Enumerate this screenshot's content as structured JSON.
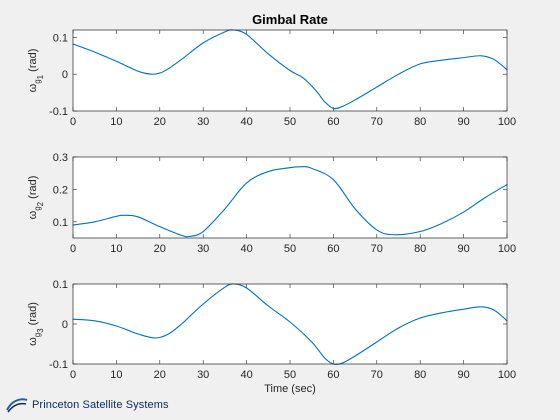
{
  "chart_data": [
    {
      "type": "line",
      "title": "Gimbal Rate",
      "ylabel": {
        "main": "ω",
        "sub": "g",
        "subsub": "1",
        "unit": "(rad)"
      },
      "xlabel": "",
      "xlim": [
        0,
        100
      ],
      "ylim": [
        -0.1,
        0.12
      ],
      "xticks": [
        0,
        10,
        20,
        30,
        40,
        50,
        60,
        70,
        80,
        90,
        100
      ],
      "yticks": [
        -0.1,
        0,
        0.1
      ],
      "ytick_labels": [
        "-0.1",
        "0",
        "0.1"
      ],
      "grid": false,
      "color": "#0072BD",
      "series": [
        {
          "x": [
            0,
            5,
            10,
            15,
            18,
            20,
            22,
            25,
            30,
            35,
            37,
            40,
            45,
            50,
            53,
            56,
            58,
            60,
            62,
            65,
            70,
            75,
            80,
            85,
            90,
            94,
            97,
            100
          ],
          "values": [
            0.082,
            0.06,
            0.035,
            0.008,
            0.0,
            0.003,
            0.015,
            0.04,
            0.085,
            0.115,
            0.12,
            0.108,
            0.055,
            0.01,
            -0.01,
            -0.045,
            -0.075,
            -0.093,
            -0.088,
            -0.07,
            -0.035,
            0.0,
            0.028,
            0.038,
            0.045,
            0.05,
            0.04,
            0.012
          ]
        }
      ]
    },
    {
      "type": "line",
      "title": "",
      "ylabel": {
        "main": "ω",
        "sub": "g",
        "subsub": "2",
        "unit": "(rad)"
      },
      "xlabel": "",
      "xlim": [
        0,
        100
      ],
      "ylim": [
        0.05,
        0.3
      ],
      "xticks": [
        0,
        10,
        20,
        30,
        40,
        50,
        60,
        70,
        80,
        90,
        100
      ],
      "yticks": [
        0.1,
        0.2,
        0.3
      ],
      "ytick_labels": [
        "0.1",
        "0.2",
        "0.3"
      ],
      "grid": false,
      "color": "#0072BD",
      "series": [
        {
          "x": [
            0,
            5,
            10,
            12,
            15,
            20,
            25,
            27,
            30,
            35,
            40,
            45,
            50,
            53,
            55,
            60,
            65,
            70,
            74,
            80,
            85,
            90,
            95,
            100
          ],
          "values": [
            0.09,
            0.1,
            0.117,
            0.12,
            0.115,
            0.085,
            0.058,
            0.055,
            0.07,
            0.14,
            0.22,
            0.255,
            0.267,
            0.27,
            0.265,
            0.23,
            0.14,
            0.075,
            0.06,
            0.07,
            0.095,
            0.13,
            0.175,
            0.215
          ]
        }
      ]
    },
    {
      "type": "line",
      "title": "",
      "ylabel": {
        "main": "ω",
        "sub": "g",
        "subsub": "3",
        "unit": "(rad)"
      },
      "xlabel": "Time (sec)",
      "xlim": [
        0,
        100
      ],
      "ylim": [
        -0.1,
        0.1
      ],
      "xticks": [
        0,
        10,
        20,
        30,
        40,
        50,
        60,
        70,
        80,
        90,
        100
      ],
      "yticks": [
        -0.1,
        0,
        0.1
      ],
      "ytick_labels": [
        "-0.1",
        "0",
        "0.1"
      ],
      "grid": false,
      "color": "#0072BD",
      "series": [
        {
          "x": [
            0,
            5,
            10,
            15,
            19,
            22,
            25,
            30,
            35,
            37,
            40,
            45,
            50,
            55,
            58,
            60,
            62,
            65,
            70,
            75,
            80,
            85,
            90,
            94,
            97,
            100
          ],
          "values": [
            0.012,
            0.008,
            -0.005,
            -0.025,
            -0.035,
            -0.025,
            0.0,
            0.05,
            0.092,
            0.1,
            0.09,
            0.045,
            0.005,
            -0.045,
            -0.085,
            -0.1,
            -0.098,
            -0.08,
            -0.045,
            -0.01,
            0.015,
            0.028,
            0.037,
            0.043,
            0.035,
            0.008
          ]
        }
      ]
    }
  ],
  "branding": {
    "logo_text": "Princeton Satellite Systems",
    "logo_icon": "satellite-swoosh-icon",
    "logo_color": "#0d2a57"
  }
}
